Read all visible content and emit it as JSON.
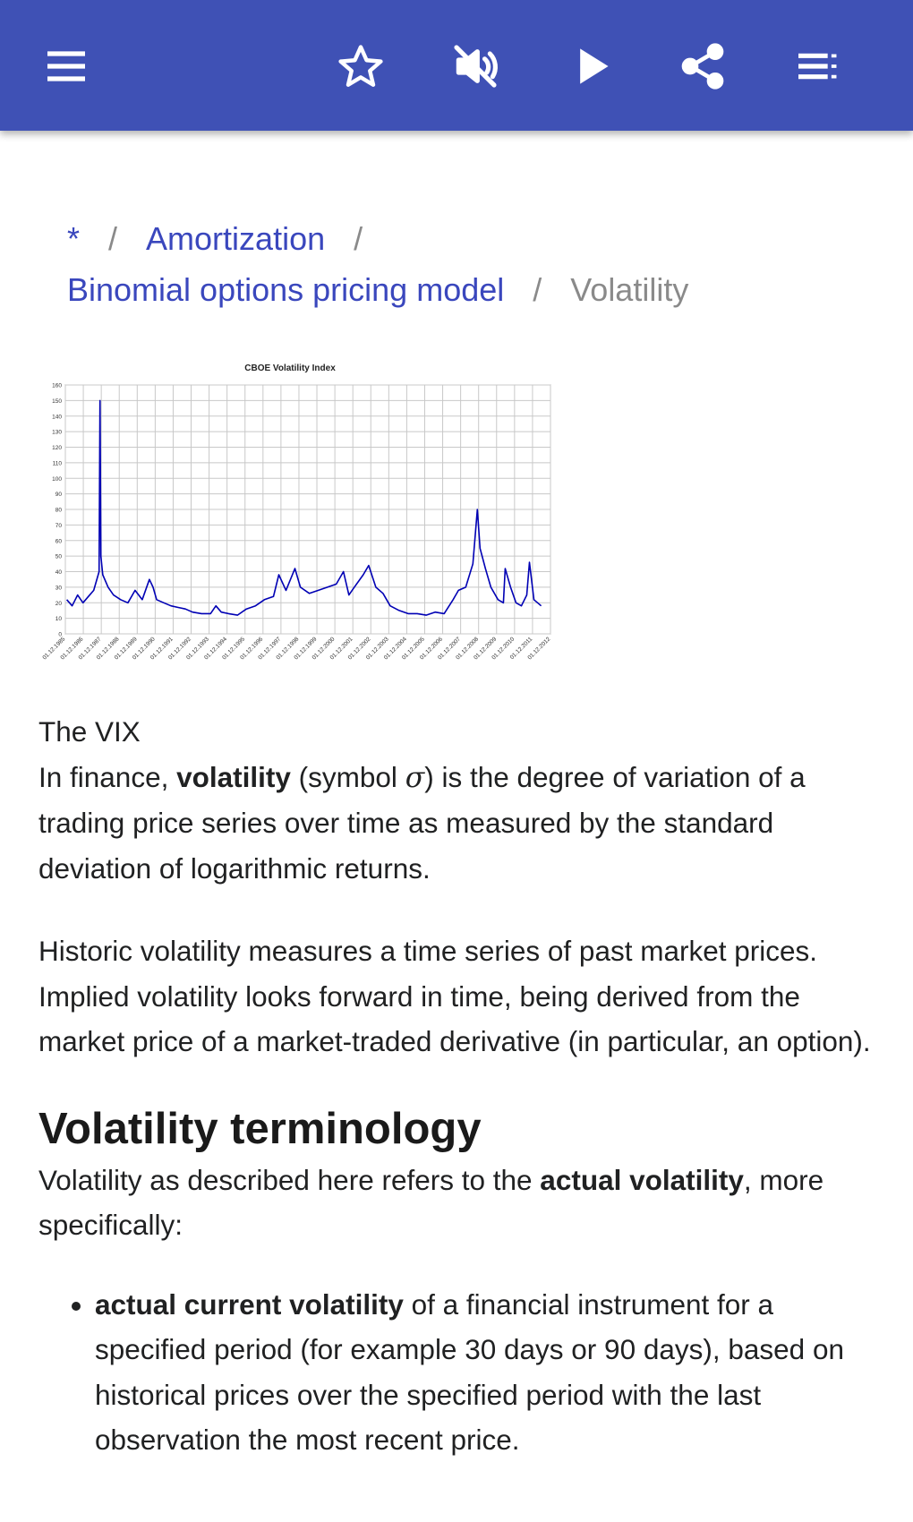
{
  "toolbar": {
    "menu_icon": "hamburger-menu-icon",
    "actions": [
      {
        "name": "bookmark-button",
        "icon": "star-outline-icon"
      },
      {
        "name": "mute-button",
        "icon": "volume-off-icon"
      },
      {
        "name": "play-button",
        "icon": "play-icon"
      },
      {
        "name": "share-button",
        "icon": "share-icon"
      },
      {
        "name": "contents-button",
        "icon": "table-of-contents-icon"
      }
    ],
    "background_color": "#3f51b5"
  },
  "breadcrumb": {
    "home": "*",
    "item1": "Amortization",
    "item2": "Binomial options pricing model",
    "current": "Volatility",
    "separator": "/"
  },
  "figure": {
    "caption": "The VIX"
  },
  "chart_data": {
    "type": "line",
    "title": "CBOE Volatility Index",
    "xlabel": "",
    "ylabel": "",
    "ylim": [
      0,
      160
    ],
    "yticks": [
      0,
      10,
      20,
      30,
      40,
      50,
      60,
      70,
      80,
      90,
      100,
      110,
      120,
      130,
      140,
      150,
      160
    ],
    "grid": true,
    "x_tick_labels": [
      "01.12.1985",
      "01.12.1986",
      "01.12.1987",
      "01.12.1988",
      "01.12.1989",
      "01.12.1990",
      "01.12.1991",
      "01.12.1992",
      "01.12.1993",
      "01.12.1994",
      "01.12.1995",
      "01.12.1996",
      "01.12.1997",
      "01.12.1998",
      "01.12.1999",
      "01.12.2000",
      "01.12.2001",
      "01.12.2002",
      "01.12.2003",
      "01.12.2004",
      "01.12.2005",
      "01.12.2006",
      "01.12.2007",
      "01.12.2008",
      "01.12.2009",
      "01.12.2010",
      "01.12.2011",
      "01.12.2012"
    ],
    "x": [
      1986.0,
      1986.3,
      1986.6,
      1986.9,
      1987.2,
      1987.5,
      1987.8,
      1987.85,
      1987.9,
      1988.0,
      1988.3,
      1988.6,
      1989.0,
      1989.4,
      1989.8,
      1990.2,
      1990.6,
      1990.8,
      1991.0,
      1991.4,
      1991.8,
      1992.2,
      1992.6,
      1993.0,
      1993.5,
      1994.0,
      1994.3,
      1994.6,
      1995.0,
      1995.5,
      1996.0,
      1996.5,
      1997.0,
      1997.5,
      1997.8,
      1998.2,
      1998.7,
      1999.0,
      1999.5,
      2000.0,
      2000.5,
      2001.0,
      2001.4,
      2001.7,
      2002.0,
      2002.5,
      2002.8,
      2003.2,
      2003.6,
      2004.0,
      2004.5,
      2005.0,
      2005.5,
      2006.0,
      2006.5,
      2007.0,
      2007.5,
      2007.8,
      2008.2,
      2008.6,
      2008.85,
      2009.0,
      2009.3,
      2009.6,
      2010.0,
      2010.3,
      2010.4,
      2010.7,
      2011.0,
      2011.3,
      2011.6,
      2011.75,
      2012.0,
      2012.4
    ],
    "series": [
      {
        "values": [
          22,
          18,
          25,
          20,
          24,
          28,
          40,
          150,
          50,
          38,
          30,
          25,
          22,
          20,
          28,
          22,
          35,
          30,
          22,
          20,
          18,
          17,
          16,
          14,
          13,
          13,
          18,
          14,
          13,
          12,
          16,
          18,
          22,
          24,
          38,
          28,
          42,
          30,
          26,
          28,
          30,
          32,
          40,
          25,
          30,
          38,
          44,
          30,
          26,
          18,
          15,
          13,
          13,
          12,
          14,
          13,
          22,
          28,
          30,
          45,
          80,
          55,
          42,
          30,
          22,
          20,
          42,
          30,
          20,
          18,
          25,
          46,
          22,
          18
        ],
        "color": "#0000b4"
      }
    ]
  },
  "article": {
    "intro_before": "In finance, ",
    "intro_term": "volatility",
    "intro_paren_open": " (symbol ",
    "intro_symbol": "σ",
    "intro_after": ") is the degree of variation of a trading price series over time as measured by the standard deviation of logarithmic returns.",
    "paragraph2": "Historic volatility measures a time series of past market prices. Implied volatility looks forward in time, being derived from the market price of a market-traded derivative (in particular, an option).",
    "section_heading": "Volatility terminology",
    "section_intro_before": "Volatility as described here refers to the ",
    "section_intro_term": "actual volatility",
    "section_intro_after": ", more specifically:",
    "list_items": [
      {
        "term": "actual current volatility",
        "text": " of a financial instrument for a specified period (for example 30 days or 90 days), based on historical prices over the specified period with the last observation the most recent price."
      }
    ]
  }
}
